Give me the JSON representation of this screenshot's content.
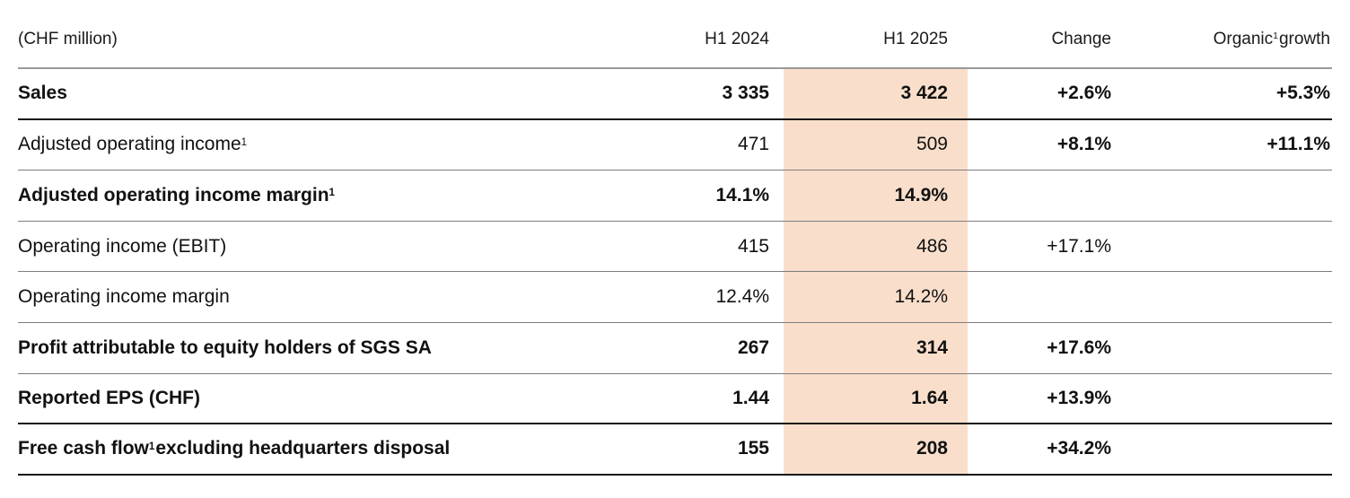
{
  "table": {
    "unit_label": "(CHF million)",
    "col_h1_2024": "H1 2024",
    "col_h1_2025": "H1 2025",
    "col_change": "Change",
    "col_organic": {
      "pre": "Organic",
      "sup": "1",
      "post": " growth"
    },
    "highlight_color": "#f9dfcb",
    "rows": [
      {
        "label": "Sales",
        "sup": "",
        "label_post": "",
        "bold": true,
        "h1_2024": "3 335",
        "h1_2025": "3 422",
        "change": "+2.6%",
        "organic": "+5.3%",
        "change_bold": true
      },
      {
        "label": "Adjusted operating income",
        "sup": "1",
        "label_post": "",
        "bold": false,
        "h1_2024": "471",
        "h1_2025": "509",
        "change": "+8.1%",
        "organic": "+11.1%",
        "change_bold": true
      },
      {
        "label": "Adjusted operating income margin",
        "sup": "1",
        "label_post": "",
        "bold": true,
        "h1_2024": "14.1%",
        "h1_2025": "14.9%",
        "change": "",
        "organic": "",
        "change_bold": false
      },
      {
        "label": "Operating income (EBIT)",
        "sup": "",
        "label_post": "",
        "bold": false,
        "h1_2024": "415",
        "h1_2025": "486",
        "change": "+17.1%",
        "organic": "",
        "change_bold": false
      },
      {
        "label": "Operating income margin",
        "sup": "",
        "label_post": "",
        "bold": false,
        "h1_2024": "12.4%",
        "h1_2025": "14.2%",
        "change": "",
        "organic": "",
        "change_bold": false
      },
      {
        "label": "Profit attributable to equity holders of SGS SA",
        "sup": "",
        "label_post": "",
        "bold": true,
        "h1_2024": "267",
        "h1_2025": "314",
        "change": "+17.6%",
        "organic": "",
        "change_bold": true
      },
      {
        "label": "Reported EPS (CHF)",
        "sup": "",
        "label_post": "",
        "bold": true,
        "h1_2024": "1.44",
        "h1_2025": "1.64",
        "change": "+13.9%",
        "organic": "",
        "change_bold": true
      },
      {
        "label": "Free cash flow",
        "sup": "1",
        "label_post": " excluding headquarters disposal",
        "bold": true,
        "h1_2024": "155",
        "h1_2025": "208",
        "change": "+34.2%",
        "organic": "",
        "change_bold": true
      }
    ]
  }
}
